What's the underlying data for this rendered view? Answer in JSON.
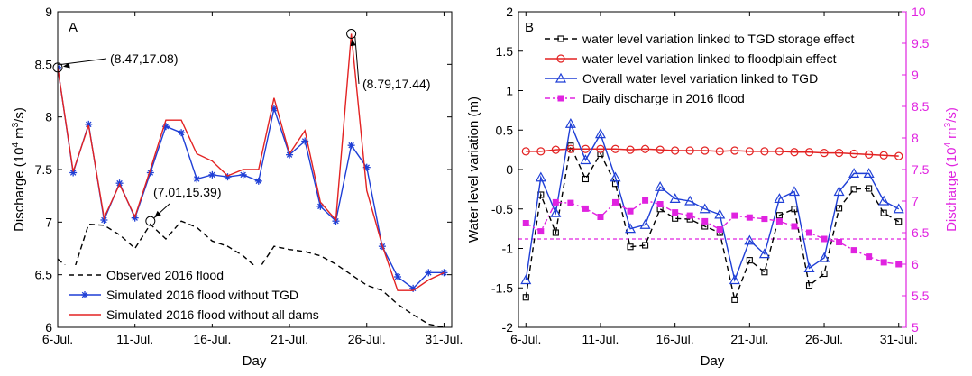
{
  "chart_data": [
    {
      "type": "line",
      "panel_label": "A",
      "xlabel": "Day",
      "ylabel": "Discharge (10",
      "ylabel_sup": "4",
      "ylabel_tail": " m",
      "ylabel_sup2": "3",
      "ylabel_end": "/s)",
      "xlim": [
        6,
        31.5
      ],
      "ylim": [
        6,
        9
      ],
      "x_ticks": [
        6,
        11,
        16,
        21,
        26,
        31
      ],
      "x_tick_labels": [
        "6-Jul.",
        "11-Jul.",
        "16-Jul.",
        "21-Jul.",
        "26-Jul.",
        "31-Jul."
      ],
      "y_ticks": [
        6,
        6.5,
        7,
        7.5,
        8,
        8.5,
        9
      ],
      "y_tick_labels": [
        "6",
        "6.5",
        "7",
        "7.5",
        "8",
        "8.5",
        "9"
      ],
      "legend_position": "bottom-left",
      "series": [
        {
          "name": "Observed 2016 flood",
          "color": "#000000",
          "style": "dashed",
          "x": [
            6,
            7,
            8,
            9,
            10,
            11,
            12,
            13,
            14,
            15,
            16,
            17,
            18,
            19,
            20,
            21,
            22,
            23,
            24,
            25,
            26,
            27,
            28,
            29,
            30,
            31
          ],
          "y": [
            6.65,
            6.52,
            6.98,
            6.97,
            6.88,
            6.75,
            6.98,
            6.84,
            7.01,
            6.95,
            6.82,
            6.77,
            6.68,
            6.55,
            6.77,
            6.74,
            6.72,
            6.68,
            6.6,
            6.5,
            6.4,
            6.35,
            6.22,
            6.12,
            6.03,
            6.0
          ]
        },
        {
          "name": "Simulated 2016 flood without TGD",
          "color": "#1f3fd6",
          "style": "solid-star",
          "x": [
            6,
            7,
            8,
            9,
            10,
            11,
            12,
            13,
            14,
            15,
            16,
            17,
            18,
            19,
            20,
            21,
            22,
            23,
            24,
            25,
            26,
            27,
            28,
            29,
            30,
            31
          ],
          "y": [
            8.47,
            7.47,
            7.93,
            7.02,
            7.37,
            7.04,
            7.47,
            7.91,
            7.85,
            7.41,
            7.45,
            7.43,
            7.45,
            7.39,
            8.08,
            7.64,
            7.77,
            7.15,
            7.01,
            7.73,
            7.52,
            6.77,
            6.48,
            6.37,
            6.52,
            6.52
          ]
        },
        {
          "name": "Simulated 2016 flood without all dams",
          "color": "#e32222",
          "style": "solid",
          "x": [
            6,
            7,
            8,
            9,
            10,
            11,
            12,
            13,
            14,
            15,
            16,
            17,
            18,
            19,
            20,
            21,
            22,
            23,
            24,
            25,
            26,
            27,
            28,
            29,
            30,
            31
          ],
          "y": [
            8.47,
            7.48,
            7.92,
            7.04,
            7.36,
            7.05,
            7.5,
            7.97,
            7.97,
            7.65,
            7.58,
            7.44,
            7.5,
            7.5,
            8.18,
            7.65,
            7.87,
            7.19,
            7.02,
            8.79,
            7.3,
            6.78,
            6.35,
            6.35,
            6.45,
            6.52
          ]
        }
      ],
      "annotations": [
        {
          "text": "(8.47,17.08)",
          "x": 6,
          "y": 8.47,
          "color": "#1f3fd6"
        },
        {
          "text": "(8.79,17.44)",
          "x": 25,
          "y": 8.79,
          "color": "#e32222"
        },
        {
          "text": "(7.01,15.39)",
          "x": 12,
          "y": 7.01,
          "color": "#000000"
        }
      ]
    },
    {
      "type": "line",
      "panel_label": "B",
      "xlabel": "Day",
      "ylabel": "Water level variation (m)",
      "ylabel_right": "Discharge (10",
      "ylabel_right_sup": "4",
      "ylabel_right_tail": " m",
      "ylabel_right_sup2": "3",
      "ylabel_right_end": "/s)",
      "xlim": [
        5.5,
        31.5
      ],
      "ylim": [
        -2,
        2
      ],
      "ylim_right": [
        5,
        10
      ],
      "x_ticks": [
        6,
        11,
        16,
        21,
        26,
        31
      ],
      "x_tick_labels": [
        "6-Jul.",
        "11-Jul.",
        "16-Jul.",
        "21-Jul.",
        "26-Jul.",
        "31-Jul."
      ],
      "y_ticks": [
        -2,
        -1.5,
        -1,
        -0.5,
        0,
        0.5,
        1,
        1.5,
        2
      ],
      "y_tick_labels": [
        "-2",
        "-1.5",
        "-1",
        "-0.5",
        "0",
        "0.5",
        "1",
        "1.5",
        "2"
      ],
      "y_ticks_right": [
        5,
        5.5,
        6,
        6.5,
        7,
        7.5,
        8,
        8.5,
        9,
        9.5,
        10
      ],
      "y_tick_labels_right": [
        "5",
        "5.5",
        "6",
        "6.5",
        "7",
        "7.5",
        "8",
        "8.5",
        "9",
        "9.5",
        "10"
      ],
      "right_axis_color": "#e023e0",
      "legend_position": "top-left",
      "reference_line_right": 6.4,
      "series": [
        {
          "name": "water level variation linked to TGD storage effect",
          "color": "#000000",
          "style": "dashed-square",
          "axis": "left",
          "x": [
            6,
            7,
            8,
            9,
            10,
            11,
            12,
            13,
            14,
            15,
            16,
            17,
            18,
            19,
            20,
            21,
            22,
            23,
            24,
            25,
            26,
            27,
            28,
            29,
            30,
            31
          ],
          "y": [
            -1.62,
            -0.32,
            -0.8,
            0.3,
            -0.12,
            0.2,
            -0.18,
            -0.98,
            -0.96,
            -0.5,
            -0.62,
            -0.63,
            -0.72,
            -0.8,
            -1.65,
            -1.15,
            -1.3,
            -0.58,
            -0.5,
            -1.47,
            -1.32,
            -0.49,
            -0.25,
            -0.24,
            -0.55,
            -0.66
          ]
        },
        {
          "name": "water level variation linked to floodplain effect",
          "color": "#e32222",
          "style": "solid-circle",
          "axis": "left",
          "x": [
            6,
            7,
            8,
            9,
            10,
            11,
            12,
            13,
            14,
            15,
            16,
            17,
            18,
            19,
            20,
            21,
            22,
            23,
            24,
            25,
            26,
            27,
            28,
            29,
            30,
            31
          ],
          "y": [
            0.23,
            0.23,
            0.25,
            0.26,
            0.26,
            0.26,
            0.26,
            0.25,
            0.26,
            0.25,
            0.24,
            0.24,
            0.24,
            0.23,
            0.24,
            0.23,
            0.23,
            0.23,
            0.22,
            0.22,
            0.21,
            0.21,
            0.2,
            0.19,
            0.18,
            0.17
          ]
        },
        {
          "name": "Overall water level variation linked to TGD",
          "color": "#1f3fd6",
          "style": "solid-triangle",
          "axis": "left",
          "x": [
            6,
            7,
            8,
            9,
            10,
            11,
            12,
            13,
            14,
            15,
            16,
            17,
            18,
            19,
            20,
            21,
            22,
            23,
            24,
            25,
            26,
            27,
            28,
            29,
            30,
            31
          ],
          "y": [
            -1.4,
            -0.1,
            -0.55,
            0.58,
            0.12,
            0.45,
            -0.1,
            -0.75,
            -0.7,
            -0.22,
            -0.37,
            -0.4,
            -0.5,
            -0.57,
            -1.4,
            -0.9,
            -1.07,
            -0.37,
            -0.28,
            -1.25,
            -1.12,
            -0.28,
            -0.05,
            -0.05,
            -0.4,
            -0.5
          ]
        },
        {
          "name": "Daily discharge in 2016 flood",
          "color": "#e023e0",
          "style": "dashdot-square",
          "axis": "right",
          "x": [
            6,
            7,
            8,
            9,
            10,
            11,
            12,
            13,
            14,
            15,
            16,
            17,
            18,
            19,
            20,
            21,
            22,
            23,
            24,
            25,
            26,
            27,
            28,
            29,
            30,
            31
          ],
          "y": [
            6.65,
            6.52,
            6.98,
            6.97,
            6.88,
            6.75,
            6.98,
            6.84,
            7.01,
            6.95,
            6.82,
            6.77,
            6.68,
            6.55,
            6.77,
            6.74,
            6.72,
            6.68,
            6.6,
            6.5,
            6.4,
            6.35,
            6.22,
            6.12,
            6.03,
            6.0
          ]
        }
      ]
    }
  ]
}
